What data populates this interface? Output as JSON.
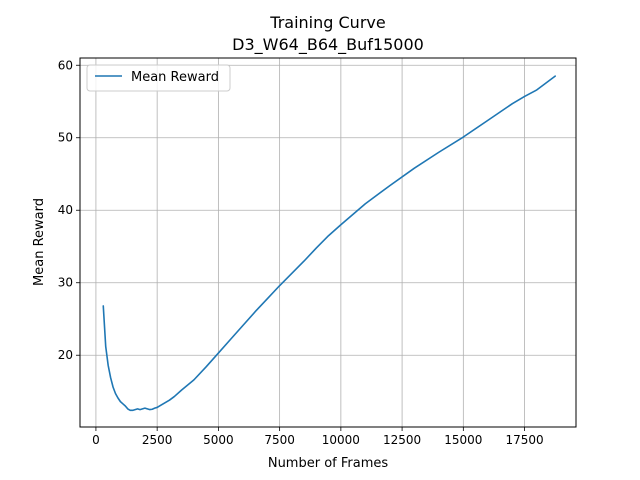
{
  "chart_data": {
    "type": "line",
    "title": "Training Curve",
    "subtitle": "D3_W64_B64_Buf15000",
    "xlabel": "Number of Frames",
    "ylabel": "Mean Reward",
    "xlim": [
      -650,
      19600
    ],
    "ylim": [
      10.1,
      61.0
    ],
    "xticks": [
      0,
      2500,
      5000,
      7500,
      10000,
      12500,
      15000,
      17500
    ],
    "yticks": [
      20,
      30,
      40,
      50,
      60
    ],
    "grid": true,
    "legend_position": "top-left",
    "colors": {
      "series": "#1f77b4",
      "grid": "#b0b0b0",
      "axes": "#000000"
    },
    "series": [
      {
        "name": "Mean Reward",
        "x": [
          300,
          400,
          500,
          600,
          700,
          800,
          900,
          1000,
          1100,
          1200,
          1300,
          1400,
          1500,
          1600,
          1700,
          1800,
          1900,
          2000,
          2100,
          2200,
          2300,
          2400,
          2500,
          2600,
          2800,
          3000,
          3200,
          3500,
          4000,
          4500,
          5000,
          5500,
          6000,
          6500,
          7000,
          7500,
          8000,
          8500,
          9000,
          9500,
          10000,
          11000,
          12000,
          13000,
          14000,
          15000,
          16000,
          17000,
          17500,
          18000,
          18750
        ],
        "y": [
          26.8,
          21.2,
          18.6,
          16.9,
          15.6,
          14.7,
          14.1,
          13.6,
          13.3,
          13.0,
          12.6,
          12.4,
          12.4,
          12.5,
          12.6,
          12.5,
          12.6,
          12.7,
          12.6,
          12.5,
          12.55,
          12.7,
          12.8,
          13.0,
          13.4,
          13.8,
          14.3,
          15.2,
          16.6,
          18.4,
          20.3,
          22.2,
          24.1,
          26.0,
          27.8,
          29.6,
          31.3,
          33.0,
          34.8,
          36.5,
          38.0,
          40.9,
          43.4,
          45.8,
          48.0,
          50.1,
          52.4,
          54.7,
          55.7,
          56.6,
          58.5
        ]
      }
    ]
  }
}
